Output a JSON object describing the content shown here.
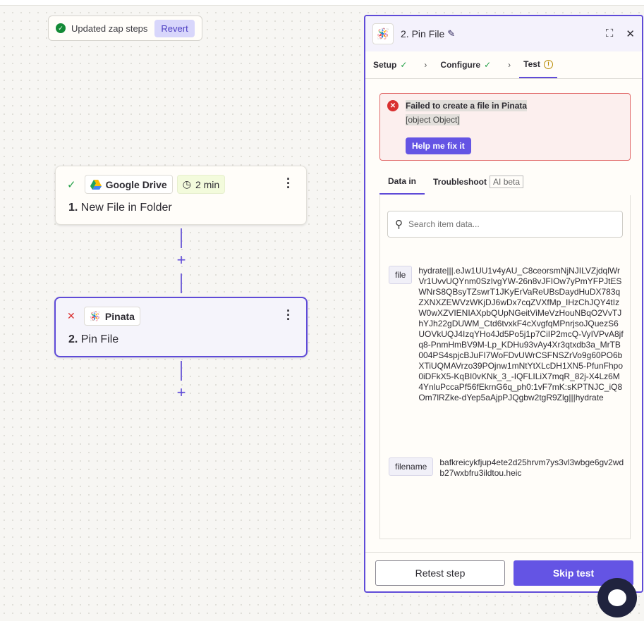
{
  "toast": {
    "message": "Updated zap steps",
    "revert_label": "Revert"
  },
  "steps": [
    {
      "status": "success",
      "app": "Google Drive",
      "time_badge": "2 min",
      "title_num": "1.",
      "title": "New File in Folder"
    },
    {
      "status": "error",
      "app": "Pinata",
      "title_num": "2.",
      "title": "Pin File"
    }
  ],
  "panel": {
    "title": "2. Pin File",
    "tabs": [
      {
        "label": "Setup",
        "status": "complete"
      },
      {
        "label": "Configure",
        "status": "complete"
      },
      {
        "label": "Test",
        "status": "warning"
      }
    ],
    "error": {
      "title": "Failed to create a file in Pinata",
      "detail": "[object Object]",
      "fix_label": "Help me fix it"
    },
    "subtabs": {
      "data_in": "Data in",
      "troubleshoot": "Troubleshoot",
      "ai_badge": "AI beta"
    },
    "search": {
      "placeholder": "Search item data..."
    },
    "fields": [
      {
        "key": "file",
        "value": "hydrate|||.eJw1UU1v4yAU_C8ceorsmNjNJILVZjdqlWrVr1UvvUQYnm0SzIvgYW-26n8vJFIOw7yPmYFPJtESWNrS8QBsyTZswrT1JKyErVaReUBsDaydHuDX783qZXNXZEWVzWKjDJ6wDx7cqZVXfMp_IHzChJQY4tIzW0wXZVIENIAXpbQUpNGeitViMeVzHouNBqO2VvTJhYJh22gDUWM_Ctd6tvxkF4cXvgfqMPnrjsoJQuezS6UOVkUQJ4IzqYHo4Jd5Po5j1p7CiIP2mcQ-VyIVPvA8jfq8-PnmHmBV9M-Lp_KDHu93vAy4Xr3qtxdb3a_MrTB004PS4spjcBJuFI7WoFDvUWrCSFNSZrVo9g60PO6bXTiUQMAVrzo39POjnw1mNtYtXLcDH1XN5-PfunFhpo0iDFkX5-KqBI0vKNk_3_-IQFLILiX7mqR_82j-X4Lz6M4YnluPccaPf56fEkrnG6q_ph0:1vF7mK:sKPTNJC_iQ8Om7lRZke-dYep5aAjpPJQgbw2tgR9Zlg|||hydrate"
      },
      {
        "key": "filename",
        "value": "bafkreicykfjup4ete2d25hrvm7ys3vl3wbge6gv2wdb27wxbfru3ildtou.heic"
      }
    ],
    "retest_label": "Retest step",
    "skip_label": "Skip test"
  },
  "colors": {
    "accent": "#5f4bd8",
    "error": "#d93030",
    "success": "#24a148"
  }
}
